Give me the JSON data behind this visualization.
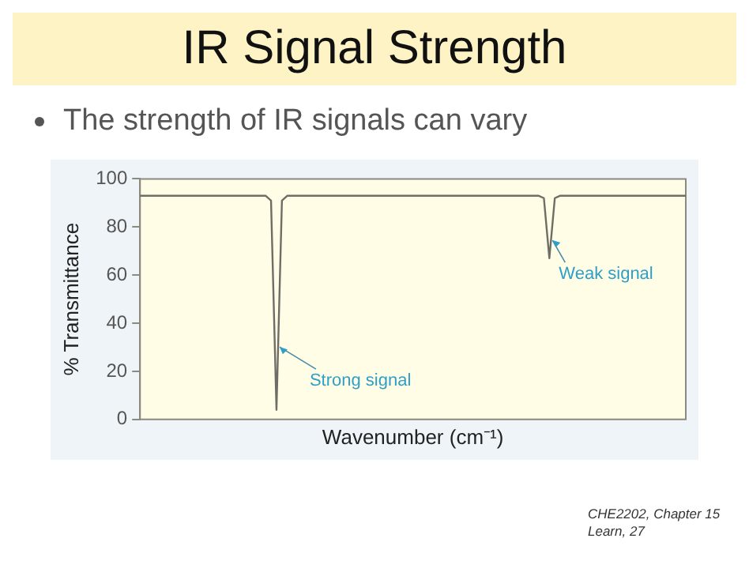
{
  "chart_data": {
    "type": "line",
    "title": "IR Signal Strength",
    "subtitle": "The strength of IR signals can vary",
    "xlabel": "Wavenumber (cm⁻¹)",
    "ylabel": "% Transmittance",
    "categories": [
      null,
      null,
      null,
      null,
      null,
      null,
      null,
      null,
      null,
      null,
      null,
      null,
      null,
      null,
      null,
      null,
      null,
      null,
      null,
      null,
      null,
      null,
      null,
      null,
      null,
      null,
      null,
      null,
      null,
      null,
      null,
      null,
      null,
      null,
      null,
      null,
      null,
      null,
      null,
      null,
      null,
      null,
      null,
      null,
      null,
      null,
      null,
      null,
      null,
      null,
      null,
      null,
      null,
      null,
      null,
      null,
      null,
      null,
      null,
      null,
      null,
      null,
      null,
      null,
      null,
      null,
      null,
      null,
      null,
      null,
      null,
      null,
      null,
      null,
      null,
      null,
      null,
      null,
      null,
      null,
      null,
      null,
      null,
      null,
      null,
      null,
      null,
      null,
      null,
      null,
      null,
      null,
      null,
      null,
      null,
      null,
      null,
      null,
      null,
      null,
      null
    ],
    "series": [
      {
        "color": "#6e6e66",
        "values": [
          93,
          93,
          93,
          93,
          93,
          93,
          93,
          93,
          93,
          93,
          93,
          93,
          93,
          93,
          93,
          93,
          93,
          93,
          93,
          93,
          93,
          93,
          93,
          93,
          91,
          4,
          91,
          93,
          93,
          93,
          93,
          93,
          93,
          93,
          93,
          93,
          93,
          93,
          93,
          93,
          93,
          93,
          93,
          93,
          93,
          93,
          93,
          93,
          93,
          93,
          93,
          93,
          93,
          93,
          93,
          93,
          93,
          93,
          93,
          93,
          93,
          93,
          93,
          93,
          93,
          93,
          93,
          93,
          93,
          93,
          93,
          93,
          93,
          93,
          92,
          67,
          92,
          93,
          93,
          93,
          93,
          93,
          93,
          93,
          93,
          93,
          93,
          93,
          93,
          93,
          93,
          93,
          93,
          93,
          93,
          93,
          93,
          93,
          93,
          93,
          93
        ]
      }
    ],
    "ylim": [
      0,
      100
    ],
    "yticks": [
      0,
      20,
      40,
      60,
      80,
      100
    ],
    "grid": false,
    "legend": false,
    "tick_labels": "y",
    "marker": "none",
    "line_style": "solid",
    "annotations": [
      "Strong signal",
      "Weak signal",
      "CHE2202, Chapter 15 Learn, 27"
    ]
  }
}
